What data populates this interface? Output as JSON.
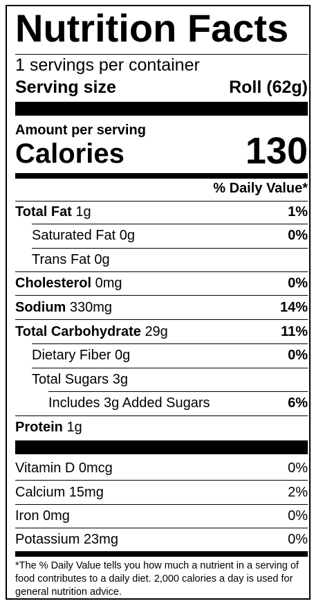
{
  "title": "Nutrition Facts",
  "servings_per_container": "1 servings per container",
  "serving_size_label": "Serving size",
  "serving_size_value": "Roll (62g)",
  "amount_per_serving": "Amount per serving",
  "calories_label": "Calories",
  "calories_value": "130",
  "daily_value_header": "% Daily Value*",
  "nutrients": [
    {
      "name": "Total Fat",
      "amount": "1g",
      "dv": "1%"
    },
    {
      "name": "Saturated Fat",
      "amount": "0g",
      "dv": "0%"
    },
    {
      "name": "Trans Fat",
      "amount": "0g",
      "dv": ""
    },
    {
      "name": "Cholesterol",
      "amount": "0mg",
      "dv": "0%"
    },
    {
      "name": "Sodium",
      "amount": "330mg",
      "dv": "14%"
    },
    {
      "name": "Total Carbohydrate",
      "amount": "29g",
      "dv": "11%"
    },
    {
      "name": "Dietary Fiber",
      "amount": "0g",
      "dv": "0%"
    },
    {
      "name": "Total Sugars",
      "amount": "3g",
      "dv": ""
    },
    {
      "name": "Includes 3g Added Sugars",
      "amount": "",
      "dv": "6%"
    },
    {
      "name": "Protein",
      "amount": "1g",
      "dv": ""
    }
  ],
  "vitamins": [
    {
      "text": "Vitamin D 0mcg",
      "dv": "0%"
    },
    {
      "text": "Calcium 15mg",
      "dv": "2%"
    },
    {
      "text": "Iron 0mg",
      "dv": "0%"
    },
    {
      "text": "Potassium 23mg",
      "dv": "0%"
    }
  ],
  "footnote": "*The % Daily Value tells you how much a nutrient in a serving of food contributes to a daily diet. 2,000 calories a day is used for general nutrition advice."
}
